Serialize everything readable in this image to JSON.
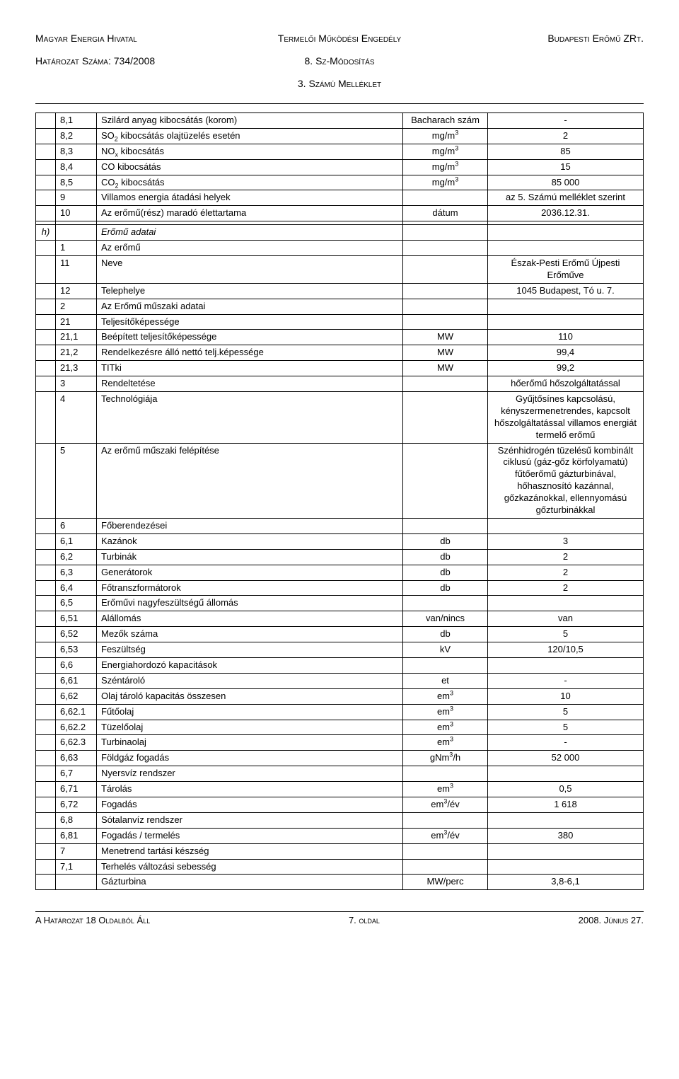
{
  "header": {
    "left_line1": "Magyar Energia Hivatal",
    "left_line2": "Határozat Száma: 734/2008",
    "center_line1": "Termelői Működési Engedély",
    "center_line2": "8. Sz-Módosítás",
    "center_line3": "3. Számú Melléklet",
    "right_line1": "Budapesti Erőmű ZRt."
  },
  "rows": [
    {
      "c1": "",
      "c2": "8,1",
      "c3": "Szilárd anyag kibocsátás (korom)",
      "c4": "Bacharach szám",
      "c5": "-",
      "indent": 1
    },
    {
      "c1": "",
      "c2": "8,2",
      "c3": "SO₂ kibocsátás olajtüzelés esetén",
      "c4": "mg/m³",
      "c5": "2",
      "indent": 1,
      "html3": "SO<sub>2</sub> kibocsátás olajtüzelés esetén",
      "html4": "mg/m<sup>3</sup>"
    },
    {
      "c1": "",
      "c2": "8,3",
      "c3": "NOₓ kibocsátás",
      "c4": "mg/m³",
      "c5": "85",
      "indent": 1,
      "html3": "NO<sub>x</sub> kibocsátás",
      "html4": "mg/m<sup>3</sup>"
    },
    {
      "c1": "",
      "c2": "8,4",
      "c3": "CO kibocsátás",
      "c4": "mg/m³",
      "c5": "15",
      "indent": 1,
      "html4": "mg/m<sup>3</sup>"
    },
    {
      "c1": "",
      "c2": "8,5",
      "c3": "CO₂ kibocsátás",
      "c4": "mg/m³",
      "c5": "85 000",
      "indent": 1,
      "html3": "CO<sub>2</sub> kibocsátás",
      "html4": "mg/m<sup>3</sup>"
    },
    {
      "c1": "",
      "c2": "9",
      "c3": "Villamos energia átadási helyek",
      "c4": "",
      "c5": "az 5. Számú melléklet szerint"
    },
    {
      "c1": "",
      "c2": "10",
      "c3": "Az erőmű(rész) maradó élettartama",
      "c4": "dátum",
      "c5": "2036.12.31."
    },
    {
      "c1": "",
      "c2": "",
      "c3": "",
      "c4": "",
      "c5": ""
    },
    {
      "c1": "h)",
      "c2": "",
      "c3": "Erőmű adatai",
      "c4": "",
      "c5": "",
      "italic": true
    },
    {
      "c1": "",
      "c2": "1",
      "c3": "Az erőmű",
      "c4": "",
      "c5": ""
    },
    {
      "c1": "",
      "c2": "11",
      "c3": "Neve",
      "c4": "",
      "c5": "Észak-Pesti Erőmű Újpesti Erőműve",
      "indent": 1
    },
    {
      "c1": "",
      "c2": "12",
      "c3": "Telephelye",
      "c4": "",
      "c5": "1045 Budapest, Tó u. 7.",
      "indent": 1
    },
    {
      "c1": "",
      "c2": "2",
      "c3": "Az Erőmű műszaki adatai",
      "c4": "",
      "c5": ""
    },
    {
      "c1": "",
      "c2": "21",
      "c3": "Teljesítőképessége",
      "c4": "",
      "c5": "",
      "indent": 1
    },
    {
      "c1": "",
      "c2": "21,1",
      "c3": "Beépített teljesítőképessége",
      "c4": "MW",
      "c5": "110",
      "indent": 2
    },
    {
      "c1": "",
      "c2": "21,2",
      "c3": "Rendelkezésre álló nettó telj.képessége",
      "c4": "MW",
      "c5": "99,4",
      "indent": 2
    },
    {
      "c1": "",
      "c2": "21,3",
      "c3": "TITki",
      "c4": "MW",
      "c5": "99,2",
      "indent": 2
    },
    {
      "c1": "",
      "c2": "3",
      "c3": "Rendeltetése",
      "c4": "",
      "c5": "hőerőmű hőszolgáltatással"
    },
    {
      "c1": "",
      "c2": "4",
      "c3": "Technológiája",
      "c4": "",
      "c5": "Gyűjtősínes kapcsolású, kényszermenetrendes, kapcsolt hőszolgáltatással villamos energiát termelő erőmű"
    },
    {
      "c1": "",
      "c2": "5",
      "c3": "Az erőmű műszaki felépítése",
      "c4": "",
      "c5": "Szénhidrogén tüzelésű kombinált ciklusú (gáz-gőz körfolyamatú) fűtőerőmű gázturbinával, hőhasznosító kazánnal, gőzkazánokkal, ellennyomású gőzturbinákkal"
    },
    {
      "c1": "",
      "c2": "6",
      "c3": "Főberendezései",
      "c4": "",
      "c5": ""
    },
    {
      "c1": "",
      "c2": "6,1",
      "c3": "Kazánok",
      "c4": "db",
      "c5": "3",
      "indent": 1
    },
    {
      "c1": "",
      "c2": "6,2",
      "c3": "Turbinák",
      "c4": "db",
      "c5": "2",
      "indent": 1
    },
    {
      "c1": "",
      "c2": "6,3",
      "c3": "Generátorok",
      "c4": "db",
      "c5": "2",
      "indent": 1
    },
    {
      "c1": "",
      "c2": "6,4",
      "c3": "Főtranszformátorok",
      "c4": "db",
      "c5": "2",
      "indent": 1
    },
    {
      "c1": "",
      "c2": "6,5",
      "c3": "Erőművi nagyfeszültségű állomás",
      "c4": "",
      "c5": "",
      "indent": 1
    },
    {
      "c1": "",
      "c2": "6,51",
      "c3": "Alállomás",
      "c4": "van/nincs",
      "c5": "van",
      "indent": 2
    },
    {
      "c1": "",
      "c2": "6,52",
      "c3": "Mezők száma",
      "c4": "db",
      "c5": "5",
      "indent": 2
    },
    {
      "c1": "",
      "c2": "6,53",
      "c3": "Feszültség",
      "c4": "kV",
      "c5": "120/10,5",
      "indent": 2
    },
    {
      "c1": "",
      "c2": "6,6",
      "c3": "Energiahordozó kapacitások",
      "c4": "",
      "c5": "",
      "indent": 1
    },
    {
      "c1": "",
      "c2": "6,61",
      "c3": "Széntároló",
      "c4": "et",
      "c5": "-",
      "indent": 2
    },
    {
      "c1": "",
      "c2": "6,62",
      "c3": "Olaj tároló kapacitás összesen",
      "c4": "em³",
      "c5": "10",
      "indent": 2,
      "html4": "em<sup>3</sup>"
    },
    {
      "c1": "",
      "c2": "6,62.1",
      "c3": "Fűtőolaj",
      "c4": "em³",
      "c5": "5",
      "indent": 2,
      "html4": "em<sup>3</sup>"
    },
    {
      "c1": "",
      "c2": "6,62.2",
      "c3": "Tüzelőolaj",
      "c4": "em³",
      "c5": "5",
      "indent": 2,
      "html4": "em<sup>3</sup>"
    },
    {
      "c1": "",
      "c2": "6,62.3",
      "c3": "Turbinaolaj",
      "c4": "em³",
      "c5": "-",
      "indent": 2,
      "html4": "em<sup>3</sup>"
    },
    {
      "c1": "",
      "c2": "6,63",
      "c3": "Földgáz fogadás",
      "c4": "gNm³/h",
      "c5": "52 000",
      "indent": 2,
      "html4": "gNm<sup>3</sup>/h"
    },
    {
      "c1": "",
      "c2": "6,7",
      "c3": "Nyersvíz rendszer",
      "c4": "",
      "c5": "",
      "indent": 1
    },
    {
      "c1": "",
      "c2": "6,71",
      "c3": "Tárolás",
      "c4": "em³",
      "c5": "0,5",
      "indent": 2,
      "html4": "em<sup>3</sup>"
    },
    {
      "c1": "",
      "c2": "6,72",
      "c3": "Fogadás",
      "c4": "em³/év",
      "c5": "1 618",
      "indent": 2,
      "html4": "em<sup>3</sup>/év"
    },
    {
      "c1": "",
      "c2": "6,8",
      "c3": "Sótalanvíz rendszer",
      "c4": "",
      "c5": "",
      "indent": 1
    },
    {
      "c1": "",
      "c2": "6,81",
      "c3": "Fogadás / termelés",
      "c4": "em³/év",
      "c5": "380",
      "indent": 2,
      "html4": "em<sup>3</sup>/év"
    },
    {
      "c1": "",
      "c2": "7",
      "c3": "Menetrend tartási készség",
      "c4": "",
      "c5": ""
    },
    {
      "c1": "",
      "c2": "7,1",
      "c3": "Terhelés változási sebesség",
      "c4": "",
      "c5": "",
      "indent": 1
    },
    {
      "c1": "",
      "c2": "",
      "c3": "Gázturbina",
      "c4": "MW/perc",
      "c5": "3,8-6,1",
      "indent": 2
    }
  ],
  "footer": {
    "left": "A Határozat 18 Oldalból Áll",
    "center": "7. oldal",
    "right": "2008. Június 27."
  }
}
